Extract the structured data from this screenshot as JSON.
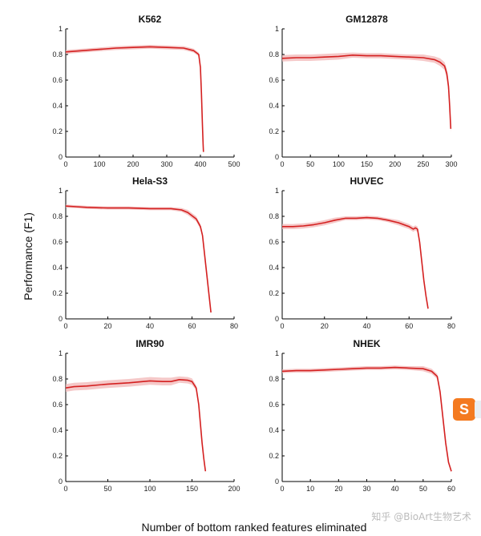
{
  "figure": {
    "ylabel": "Performance (F1)",
    "xlabel": "Number of bottom ranked features eliminated",
    "watermark": "知乎 @BioArt生物艺术",
    "badge_letter": "S",
    "line_color": "#d42020",
    "band_color": "#f2b6b6"
  },
  "chart_data": [
    {
      "type": "line",
      "title": "K562",
      "xlim": [
        0,
        500
      ],
      "ylim": [
        0,
        1
      ],
      "xticks": [
        0,
        100,
        200,
        300,
        400,
        500
      ],
      "yticks": [
        0,
        0.2,
        0.4,
        0.6,
        0.8,
        1
      ],
      "x": [
        0,
        50,
        100,
        150,
        200,
        250,
        300,
        350,
        380,
        395,
        400,
        403,
        406,
        408,
        409
      ],
      "y": [
        0.82,
        0.83,
        0.84,
        0.85,
        0.855,
        0.86,
        0.855,
        0.85,
        0.83,
        0.8,
        0.7,
        0.5,
        0.25,
        0.1,
        0.04
      ],
      "band": [
        0.015,
        0.015,
        0.015,
        0.015,
        0.015,
        0.015,
        0.015,
        0.015,
        0.015,
        0.015,
        0.01,
        0.01,
        0.01,
        0.01,
        0.01
      ]
    },
    {
      "type": "line",
      "title": "GM12878",
      "xlim": [
        0,
        300
      ],
      "ylim": [
        0,
        1
      ],
      "xticks": [
        0,
        50,
        100,
        150,
        200,
        250,
        300
      ],
      "yticks": [
        0,
        0.2,
        0.4,
        0.6,
        0.8,
        1
      ],
      "x": [
        0,
        25,
        50,
        75,
        100,
        125,
        150,
        175,
        200,
        225,
        250,
        270,
        280,
        288,
        292,
        295,
        297,
        299
      ],
      "y": [
        0.77,
        0.775,
        0.775,
        0.78,
        0.785,
        0.795,
        0.79,
        0.79,
        0.785,
        0.78,
        0.775,
        0.76,
        0.74,
        0.71,
        0.65,
        0.55,
        0.4,
        0.22
      ],
      "band": [
        0.025,
        0.025,
        0.025,
        0.025,
        0.025,
        0.02,
        0.02,
        0.02,
        0.02,
        0.02,
        0.025,
        0.025,
        0.03,
        0.03,
        0.04,
        0.05,
        0.05,
        0.03
      ]
    },
    {
      "type": "line",
      "title": "Hela-S3",
      "xlim": [
        0,
        80
      ],
      "ylim": [
        0,
        1
      ],
      "xticks": [
        0,
        20,
        40,
        60,
        80
      ],
      "yticks": [
        0,
        0.2,
        0.4,
        0.6,
        0.8,
        1
      ],
      "x": [
        0,
        5,
        10,
        20,
        30,
        40,
        50,
        55,
        58,
        62,
        64,
        65,
        66,
        67,
        68,
        69
      ],
      "y": [
        0.88,
        0.875,
        0.87,
        0.865,
        0.865,
        0.86,
        0.86,
        0.85,
        0.83,
        0.78,
        0.72,
        0.65,
        0.5,
        0.35,
        0.2,
        0.05
      ],
      "band": [
        0.012,
        0.012,
        0.012,
        0.012,
        0.012,
        0.012,
        0.012,
        0.015,
        0.02,
        0.02,
        0.02,
        0.02,
        0.015,
        0.01,
        0.01,
        0.01
      ]
    },
    {
      "type": "line",
      "title": "HUVEC",
      "xlim": [
        0,
        80
      ],
      "ylim": [
        0,
        1
      ],
      "xticks": [
        0,
        20,
        40,
        60,
        80
      ],
      "yticks": [
        0,
        0.2,
        0.4,
        0.6,
        0.8,
        1
      ],
      "x": [
        0,
        5,
        10,
        15,
        20,
        25,
        30,
        35,
        40,
        45,
        50,
        55,
        60,
        62,
        63,
        64,
        65,
        66,
        67,
        68,
        69
      ],
      "y": [
        0.72,
        0.72,
        0.725,
        0.735,
        0.75,
        0.77,
        0.785,
        0.785,
        0.79,
        0.785,
        0.77,
        0.75,
        0.72,
        0.7,
        0.71,
        0.7,
        0.6,
        0.45,
        0.3,
        0.18,
        0.08
      ],
      "band": [
        0.02,
        0.02,
        0.02,
        0.02,
        0.02,
        0.02,
        0.015,
        0.015,
        0.015,
        0.015,
        0.015,
        0.02,
        0.02,
        0.02,
        0.02,
        0.02,
        0.02,
        0.015,
        0.01,
        0.01,
        0.01
      ]
    },
    {
      "type": "line",
      "title": "IMR90",
      "xlim": [
        0,
        200
      ],
      "ylim": [
        0,
        1
      ],
      "xticks": [
        0,
        50,
        100,
        150,
        200
      ],
      "yticks": [
        0,
        0.2,
        0.4,
        0.6,
        0.8,
        1
      ],
      "x": [
        0,
        10,
        25,
        50,
        75,
        100,
        115,
        125,
        135,
        145,
        150,
        155,
        158,
        160,
        162,
        164,
        166
      ],
      "y": [
        0.73,
        0.74,
        0.745,
        0.76,
        0.77,
        0.785,
        0.78,
        0.78,
        0.795,
        0.79,
        0.78,
        0.73,
        0.6,
        0.45,
        0.3,
        0.18,
        0.08
      ],
      "band": [
        0.03,
        0.03,
        0.03,
        0.03,
        0.03,
        0.03,
        0.03,
        0.03,
        0.025,
        0.025,
        0.025,
        0.02,
        0.02,
        0.015,
        0.01,
        0.01,
        0.01
      ]
    },
    {
      "type": "line",
      "title": "NHEK",
      "xlim": [
        0,
        60
      ],
      "ylim": [
        0,
        1
      ],
      "xticks": [
        0,
        10,
        20,
        30,
        40,
        50,
        60
      ],
      "yticks": [
        0,
        0.2,
        0.4,
        0.6,
        0.8,
        1
      ],
      "x": [
        0,
        5,
        10,
        15,
        20,
        25,
        30,
        35,
        40,
        45,
        50,
        53,
        55,
        56,
        57,
        58,
        59,
        60
      ],
      "y": [
        0.86,
        0.865,
        0.865,
        0.87,
        0.875,
        0.88,
        0.885,
        0.885,
        0.89,
        0.885,
        0.88,
        0.86,
        0.82,
        0.7,
        0.5,
        0.3,
        0.15,
        0.08
      ],
      "band": [
        0.015,
        0.015,
        0.015,
        0.015,
        0.015,
        0.015,
        0.015,
        0.015,
        0.015,
        0.015,
        0.02,
        0.02,
        0.02,
        0.02,
        0.015,
        0.01,
        0.01,
        0.01
      ]
    }
  ]
}
